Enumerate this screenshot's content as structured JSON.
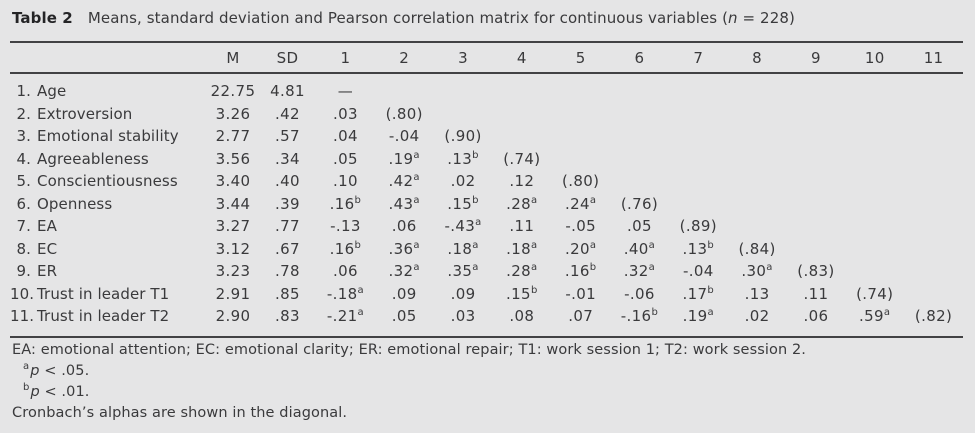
{
  "title": {
    "label": "Table 2",
    "caption_before_n": "Means, standard deviation and Pearson correlation matrix for continuous variables (",
    "n_symbol": "n",
    "caption_after_n": " = 228)"
  },
  "table": {
    "columns": [
      "M",
      "SD",
      "1",
      "2",
      "3",
      "4",
      "5",
      "6",
      "7",
      "8",
      "9",
      "10",
      "11"
    ],
    "rows": [
      {
        "num": "1.",
        "label": "Age",
        "values": [
          "22.75",
          "4.81",
          "—",
          "",
          "",
          "",
          "",
          "",
          "",
          "",
          "",
          "",
          ""
        ]
      },
      {
        "num": "2.",
        "label": "Extroversion",
        "values": [
          "3.26",
          ".42",
          ".03",
          "(.80)",
          "",
          "",
          "",
          "",
          "",
          "",
          "",
          "",
          ""
        ]
      },
      {
        "num": "3.",
        "label": "Emotional stability",
        "values": [
          "2.77",
          ".57",
          ".04",
          "-.04",
          "(.90)",
          "",
          "",
          "",
          "",
          "",
          "",
          "",
          ""
        ]
      },
      {
        "num": "4.",
        "label": "Agreeableness",
        "values": [
          "3.56",
          ".34",
          ".05",
          ".19^a",
          ".13^b",
          "(.74)",
          "",
          "",
          "",
          "",
          "",
          "",
          ""
        ]
      },
      {
        "num": "5.",
        "label": "Conscientiousness",
        "values": [
          "3.40",
          ".40",
          ".10",
          ".42^a",
          ".02",
          ".12",
          "(.80)",
          "",
          "",
          "",
          "",
          "",
          ""
        ]
      },
      {
        "num": "6.",
        "label": "Openness",
        "values": [
          "3.44",
          ".39",
          ".16^b",
          ".43^a",
          ".15^b",
          ".28^a",
          ".24^a",
          "(.76)",
          "",
          "",
          "",
          "",
          ""
        ]
      },
      {
        "num": "7.",
        "label": "EA",
        "values": [
          "3.27",
          ".77",
          "-.13",
          ".06",
          "-.43^a",
          ".11",
          "-.05",
          ".05",
          "(.89)",
          "",
          "",
          "",
          ""
        ]
      },
      {
        "num": "8.",
        "label": "EC",
        "values": [
          "3.12",
          ".67",
          ".16^b",
          ".36^a",
          ".18^a",
          ".18^a",
          ".20^a",
          ".40^a",
          ".13^b",
          "(.84)",
          "",
          "",
          ""
        ]
      },
      {
        "num": "9.",
        "label": "ER",
        "values": [
          "3.23",
          ".78",
          ".06",
          ".32^a",
          ".35^a",
          ".28^a",
          ".16^b",
          ".32^a",
          "-.04",
          ".30^a",
          "(.83)",
          "",
          ""
        ]
      },
      {
        "num": "10.",
        "label": "Trust in leader T1",
        "values": [
          "2.91",
          ".85",
          "-.18^a",
          ".09",
          ".09",
          ".15^b",
          "-.01",
          "-.06",
          ".17^b",
          ".13",
          ".11",
          "(.74)",
          ""
        ]
      },
      {
        "num": "11.",
        "label": "Trust in leader T2",
        "values": [
          "2.90",
          ".83",
          "-.21^a",
          ".05",
          ".03",
          ".08",
          ".07",
          "-.16^b",
          ".19^a",
          ".02",
          ".06",
          ".59^a",
          "(.82)"
        ]
      }
    ]
  },
  "footnotes": {
    "abbreviations": "EA: emotional attention; EC: emotional clarity; ER: emotional repair; T1: work session 1; T2: work session 2.",
    "sig_a": {
      "marker": "a",
      "symbol": "p",
      "text": " < .05."
    },
    "sig_b": {
      "marker": "b",
      "symbol": "p",
      "text": " < .01."
    },
    "cronbach": "Cronbach’s alphas are shown in the diagonal."
  },
  "colors": {
    "background": "#e5e5e6",
    "text": "#3a3a3c",
    "title": "#242426",
    "rule": "#424244"
  }
}
